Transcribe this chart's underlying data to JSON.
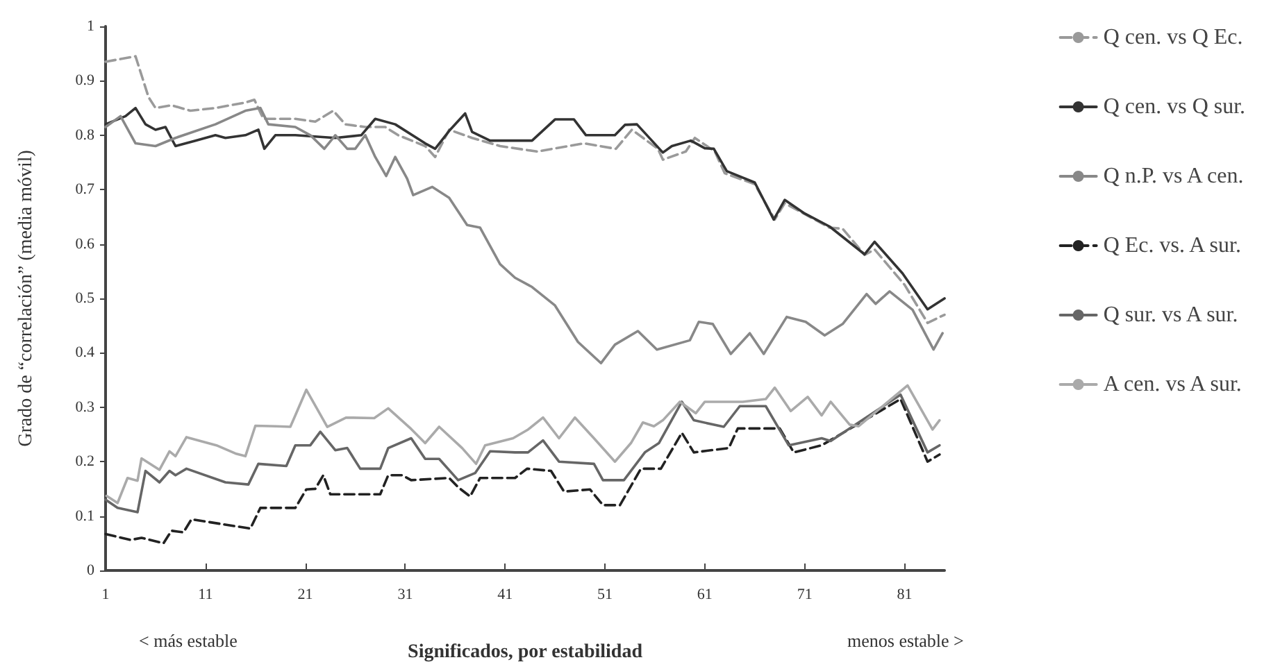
{
  "chart_data": {
    "type": "line",
    "xlabel": "Significados, por estabilidad",
    "ylabel": "Grado de “correlación” (media móvil)",
    "annotations": [
      "< más estable",
      "menos estable >"
    ],
    "xlim": [
      1,
      85
    ],
    "xticks": [
      1,
      11,
      21,
      31,
      41,
      51,
      61,
      71,
      81
    ],
    "ylim": [
      0,
      1
    ],
    "yticks": [
      0,
      0.1,
      0.2,
      0.3,
      0.4,
      0.5,
      0.6,
      0.7,
      0.8,
      0.9,
      1
    ],
    "grid": false,
    "legend": "right",
    "marker": "none",
    "series": [
      {
        "name": "Q cen. vs Q Ec.",
        "color": "#9a9a9a",
        "line_style": "dashed",
        "x": [
          1,
          2.5,
          4,
          5.3,
          6,
          7.6,
          9.5,
          12,
          15,
          15.9,
          16.8,
          20,
          22,
          23.8,
          25,
          27,
          29,
          30.3,
          33,
          34,
          35.4,
          37.7,
          40.5,
          44.2,
          48.9,
          52.1,
          53.7,
          56.3,
          56.8,
          59.1,
          60,
          62,
          63,
          66,
          68,
          69,
          71,
          73.5,
          74.8,
          77,
          78,
          81,
          83.3,
          85
        ],
        "values": [
          0.935,
          0.94,
          0.945,
          0.87,
          0.85,
          0.855,
          0.845,
          0.85,
          0.86,
          0.865,
          0.83,
          0.83,
          0.825,
          0.845,
          0.82,
          0.815,
          0.815,
          0.8,
          0.78,
          0.76,
          0.81,
          0.795,
          0.78,
          0.77,
          0.785,
          0.775,
          0.81,
          0.775,
          0.755,
          0.77,
          0.795,
          0.77,
          0.73,
          0.71,
          0.645,
          0.675,
          0.655,
          0.63,
          0.628,
          0.58,
          0.59,
          0.525,
          0.455,
          0.47
        ]
      },
      {
        "name": "Q cen. vs Q sur.",
        "color": "#333333",
        "line_style": "solid",
        "x": [
          1,
          3,
          4,
          5,
          6,
          7,
          8,
          10,
          12,
          13,
          15,
          16.3,
          16.9,
          18,
          20,
          24,
          26.6,
          28,
          30,
          33,
          34,
          35.5,
          37,
          37.7,
          39.5,
          43.7,
          46,
          47.9,
          49.1,
          52,
          53,
          54.2,
          56.8,
          57.7,
          59.6,
          61,
          61.9,
          63.2,
          66,
          67.9,
          69,
          71,
          73.5,
          77,
          78,
          80.8,
          83.3,
          85
        ],
        "values": [
          0.82,
          0.835,
          0.85,
          0.82,
          0.81,
          0.815,
          0.78,
          0.79,
          0.8,
          0.795,
          0.8,
          0.81,
          0.775,
          0.8,
          0.8,
          0.795,
          0.8,
          0.83,
          0.82,
          0.785,
          0.775,
          0.81,
          0.84,
          0.806,
          0.79,
          0.79,
          0.829,
          0.829,
          0.8,
          0.8,
          0.819,
          0.82,
          0.768,
          0.78,
          0.79,
          0.776,
          0.775,
          0.734,
          0.713,
          0.645,
          0.681,
          0.656,
          0.632,
          0.581,
          0.604,
          0.546,
          0.48,
          0.5
        ]
      },
      {
        "name": "Q n.P. vs A cen.",
        "color": "#888888",
        "line_style": "solid",
        "x": [
          1,
          2.5,
          4,
          6,
          8,
          12,
          15,
          16.5,
          17.3,
          20,
          21.5,
          22.9,
          24,
          25.2,
          26,
          27,
          28,
          29.1,
          30,
          31.2,
          31.8,
          33.7,
          35.4,
          37.2,
          38.5,
          40.5,
          42,
          43.7,
          46,
          48.3,
          50.6,
          52,
          54.3,
          56.2,
          59.5,
          60.4,
          61.8,
          63.6,
          65.5,
          66.9,
          69.2,
          71.1,
          73,
          74.8,
          77.2,
          78.1,
          79.5,
          81.8,
          83.9,
          84.8
        ],
        "values": [
          0.815,
          0.835,
          0.785,
          0.78,
          0.795,
          0.82,
          0.845,
          0.85,
          0.82,
          0.815,
          0.8,
          0.775,
          0.8,
          0.775,
          0.775,
          0.8,
          0.76,
          0.725,
          0.76,
          0.72,
          0.69,
          0.705,
          0.685,
          0.635,
          0.63,
          0.563,
          0.538,
          0.521,
          0.487,
          0.42,
          0.381,
          0.415,
          0.44,
          0.406,
          0.423,
          0.457,
          0.453,
          0.398,
          0.436,
          0.398,
          0.466,
          0.457,
          0.432,
          0.453,
          0.508,
          0.49,
          0.513,
          0.479,
          0.406,
          0.436
        ]
      },
      {
        "name": "Q Ec. vs. A sur.",
        "color": "#222222",
        "line_style": "dashed",
        "x": [
          1,
          3.5,
          4.6,
          6.8,
          7.6,
          8.8,
          9.6,
          15.5,
          16.5,
          20,
          21.1,
          22,
          22.8,
          23.5,
          28.5,
          29.3,
          30.7,
          31.6,
          35.4,
          36.3,
          37.5,
          38.5,
          42,
          43.2,
          45.6,
          46.9,
          49.5,
          50.8,
          52.5,
          54.6,
          56.6,
          58.7,
          59.9,
          63.4,
          64.3,
          68.5,
          69.9,
          72.7,
          80.6,
          83.3,
          84.5
        ],
        "values": [
          0.067,
          0.056,
          0.06,
          0.05,
          0.073,
          0.07,
          0.094,
          0.077,
          0.115,
          0.115,
          0.149,
          0.15,
          0.175,
          0.14,
          0.14,
          0.175,
          0.175,
          0.166,
          0.17,
          0.153,
          0.136,
          0.17,
          0.17,
          0.187,
          0.183,
          0.145,
          0.149,
          0.12,
          0.12,
          0.187,
          0.187,
          0.253,
          0.217,
          0.225,
          0.261,
          0.261,
          0.217,
          0.23,
          0.315,
          0.2,
          0.213
        ]
      },
      {
        "name": "Q sur. vs A sur.",
        "color": "#666666",
        "line_style": "solid",
        "x": [
          1,
          2.2,
          4.2,
          5,
          6.4,
          7.4,
          8,
          9.1,
          13,
          15.3,
          16.3,
          19.1,
          20,
          21.5,
          22.5,
          24,
          25.2,
          26.5,
          28.5,
          29.3,
          31.6,
          33,
          34.4,
          36.3,
          38,
          39.5,
          42,
          43.3,
          44.8,
          46.4,
          49.9,
          50.8,
          52.9,
          55,
          56.4,
          58.7,
          59.9,
          62.9,
          64.5,
          67.1,
          69.4,
          72.7,
          73.6,
          80.6,
          83.3,
          84.5
        ],
        "values": [
          0.13,
          0.115,
          0.107,
          0.183,
          0.162,
          0.183,
          0.175,
          0.187,
          0.162,
          0.158,
          0.196,
          0.192,
          0.23,
          0.23,
          0.255,
          0.221,
          0.225,
          0.187,
          0.187,
          0.225,
          0.243,
          0.205,
          0.205,
          0.166,
          0.179,
          0.219,
          0.217,
          0.217,
          0.239,
          0.2,
          0.196,
          0.166,
          0.166,
          0.217,
          0.234,
          0.31,
          0.276,
          0.264,
          0.302,
          0.302,
          0.23,
          0.243,
          0.238,
          0.323,
          0.217,
          0.23
        ]
      },
      {
        "name": "A cen. vs A sur.",
        "color": "#aaaaaa",
        "line_style": "solid",
        "x": [
          1.1,
          2.2,
          3.2,
          4.2,
          4.6,
          6.4,
          7.4,
          8,
          9.1,
          12.1,
          14,
          15,
          16,
          18.1,
          19.5,
          20,
          21.1,
          23.2,
          25.1,
          27.9,
          29.3,
          31.6,
          33,
          34.4,
          36.7,
          38.1,
          39,
          41.8,
          43.3,
          44.8,
          46.4,
          48,
          49.9,
          52,
          53.6,
          54.8,
          55.9,
          56.8,
          58.5,
          60.1,
          61,
          64.8,
          67.1,
          68,
          69.6,
          71.3,
          72.7,
          73.6,
          75.5,
          76.4,
          81.3,
          83.8,
          84.5
        ],
        "values": [
          0.137,
          0.124,
          0.17,
          0.165,
          0.206,
          0.185,
          0.219,
          0.21,
          0.245,
          0.23,
          0.215,
          0.21,
          0.266,
          0.265,
          0.264,
          0.285,
          0.332,
          0.264,
          0.281,
          0.28,
          0.298,
          0.26,
          0.234,
          0.264,
          0.225,
          0.196,
          0.23,
          0.243,
          0.259,
          0.281,
          0.243,
          0.281,
          0.243,
          0.2,
          0.234,
          0.272,
          0.265,
          0.276,
          0.31,
          0.289,
          0.31,
          0.31,
          0.315,
          0.336,
          0.293,
          0.319,
          0.285,
          0.31,
          0.268,
          0.265,
          0.34,
          0.259,
          0.276
        ]
      }
    ]
  }
}
